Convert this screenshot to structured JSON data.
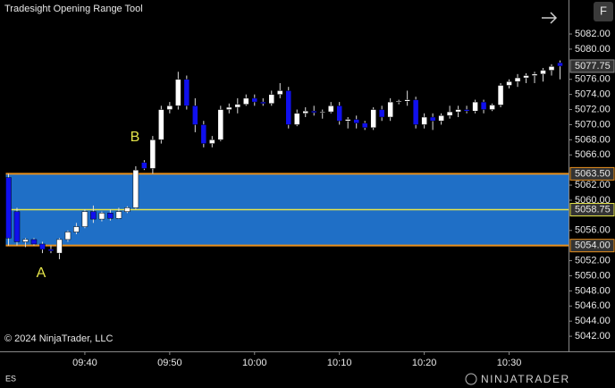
{
  "chart_data": {
    "type": "candlestick",
    "title": "Tradesight Opening Range Tool",
    "copyright": "© 2024 NinjaTrader, LLC",
    "instrument": "ES",
    "brand": "NINJATRADER",
    "button": "F",
    "annotations": [
      "A",
      "B"
    ],
    "up_color": "#ffffff",
    "down_color": "#1010ee",
    "range_color": "#1f6fc6",
    "range_edge_color": "#e8901e",
    "range_mid_color": "#e6e64a",
    "range": {
      "high": {
        "value": 5063.5,
        "label": "5063.50"
      },
      "mid": {
        "value": 5058.75,
        "label": "5058.75"
      },
      "low": {
        "value": 5054,
        "label": "5054.00"
      }
    },
    "last_price": {
      "value": 5077.75,
      "label": "5077.75"
    },
    "x": [
      1,
      2,
      3,
      4,
      5,
      6,
      7,
      8,
      9,
      10,
      11,
      12,
      13,
      14,
      15,
      16,
      17,
      18,
      19,
      20,
      21,
      22,
      23,
      24,
      25,
      26,
      27,
      28,
      29,
      30,
      31,
      32,
      33,
      34,
      35,
      36,
      37,
      38,
      39,
      40,
      41,
      42,
      43,
      44,
      45,
      46,
      47,
      48,
      49,
      50,
      51,
      52,
      53,
      54,
      55,
      56,
      57,
      58,
      59,
      60,
      61,
      62,
      63,
      64,
      65,
      66
    ],
    "open": [
      5063,
      5058.5,
      5054.5,
      5054.8,
      5054.2,
      5053.5,
      5053,
      5054.8,
      5055.8,
      5056.5,
      5058.5,
      5057.5,
      5058.3,
      5057.6,
      5058.5,
      5059,
      5065,
      5064.2,
      5068,
      5072,
      5072.5,
      5076,
      5072.5,
      5070,
      5067.5,
      5068,
      5072,
      5072.3,
      5072.7,
      5073.5,
      5073,
      5072.8,
      5074,
      5074.5,
      5070,
      5071.5,
      5071.8,
      5071.6,
      5071.7,
      5072.5,
      5070.5,
      5070.7,
      5070.2,
      5069.6,
      5072,
      5071,
      5073,
      5073.1,
      5073.3,
      5070,
      5071,
      5070.5,
      5071.2,
      5071.7,
      5072,
      5071.8,
      5073,
      5072,
      5072.6,
      5075.2,
      5075.7,
      5076.2,
      5076.5,
      5076.7,
      5077.2,
      5078.2
    ],
    "high": [
      5063.5,
      5059,
      5055,
      5055,
      5054.5,
      5054,
      5055,
      5056,
      5057,
      5058.8,
      5059.3,
      5058.5,
      5058.8,
      5059,
      5059.2,
      5064.5,
      5065.3,
      5068.5,
      5072.5,
      5073,
      5077,
      5076.5,
      5073.5,
      5070.5,
      5068.5,
      5072.5,
      5072.8,
      5073.5,
      5074,
      5074,
      5073.5,
      5074.5,
      5075.5,
      5075,
      5072,
      5072.3,
      5072.5,
      5072,
      5073,
      5073,
      5071,
      5071.2,
      5070.5,
      5072.3,
      5072.5,
      5073.5,
      5073.3,
      5074.5,
      5073.7,
      5071.5,
      5071.5,
      5071.5,
      5072.5,
      5072.5,
      5072.5,
      5073.3,
      5073.3,
      5072.8,
      5075.5,
      5076,
      5076.7,
      5076.8,
      5077,
      5077.5,
      5078,
      5078.5
    ],
    "low": [
      5054,
      5054,
      5053.8,
      5054,
      5053,
      5053,
      5052.2,
      5054.5,
      5055.5,
      5056.3,
      5057,
      5057.2,
      5057.3,
      5057.5,
      5058.3,
      5058.8,
      5064,
      5063.5,
      5067.5,
      5071.5,
      5072,
      5072,
      5069,
      5067,
      5067,
      5067.8,
      5071.5,
      5071.5,
      5072.5,
      5072.5,
      5072.5,
      5072.5,
      5073.5,
      5069.5,
      5069.8,
      5071,
      5071.2,
      5070.8,
      5071.5,
      5070,
      5069.5,
      5069.5,
      5069.3,
      5069.3,
      5070.5,
      5070.5,
      5072.7,
      5072.5,
      5069.5,
      5069.5,
      5069.3,
      5070,
      5070.8,
      5071,
      5071.5,
      5071.5,
      5071.5,
      5071.8,
      5072.3,
      5074.8,
      5075,
      5075.5,
      5075.5,
      5075.7,
      5076.5,
      5076
    ],
    "close": [
      5055,
      5054.5,
      5054.8,
      5054.2,
      5053.5,
      5053.3,
      5054.8,
      5055.8,
      5056.5,
      5058.5,
      5057.5,
      5058.3,
      5057.6,
      5058.5,
      5059,
      5064,
      5064.2,
      5068,
      5072,
      5072.5,
      5076,
      5072.5,
      5070,
      5067.5,
      5068,
      5072,
      5072.3,
      5072.7,
      5073.5,
      5073,
      5072.8,
      5074,
      5074.5,
      5070,
      5071.5,
      5071.8,
      5071.6,
      5071.7,
      5072.5,
      5070.5,
      5070.7,
      5070.2,
      5069.6,
      5072,
      5071,
      5073,
      5073.1,
      5073.3,
      5070,
      5071,
      5070.5,
      5071.2,
      5071.7,
      5072,
      5071.8,
      5073,
      5072,
      5072.6,
      5075.2,
      5075.7,
      5076.2,
      5076.5,
      5076.7,
      5077.2,
      5077.7,
      5077.75
    ],
    "xlim": [
      0,
      67
    ],
    "xticks": [
      {
        "value": 10,
        "label": "09:40"
      },
      {
        "value": 20,
        "label": "09:50"
      },
      {
        "value": 30,
        "label": "10:00"
      },
      {
        "value": 40,
        "label": "10:10"
      },
      {
        "value": 50,
        "label": "10:20"
      },
      {
        "value": 60,
        "label": "10:30"
      }
    ],
    "ylim": [
      5040,
      5086.5
    ],
    "yticks": [
      {
        "value": 5042,
        "label": "5042.00"
      },
      {
        "value": 5044,
        "label": "5044.00"
      },
      {
        "value": 5046,
        "label": "5046.00"
      },
      {
        "value": 5048,
        "label": "5048.00"
      },
      {
        "value": 5050,
        "label": "5050.00"
      },
      {
        "value": 5052,
        "label": "5052.00"
      },
      {
        "value": 5056,
        "label": "5056.00"
      },
      {
        "value": 5060,
        "label": "5060.00"
      },
      {
        "value": 5062,
        "label": "5062.00"
      },
      {
        "value": 5066,
        "label": "5066.00"
      },
      {
        "value": 5068,
        "label": "5068.00"
      },
      {
        "value": 5070,
        "label": "5070.00"
      },
      {
        "value": 5072,
        "label": "5072.00"
      },
      {
        "value": 5074,
        "label": "5074.00"
      },
      {
        "value": 5076,
        "label": "5076.00"
      },
      {
        "value": 5080,
        "label": "5080.00"
      },
      {
        "value": 5082,
        "label": "5082.00"
      }
    ],
    "grid": false
  }
}
